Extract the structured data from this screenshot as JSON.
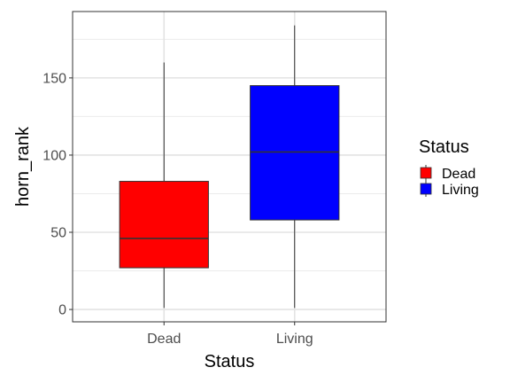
{
  "chart_data": {
    "type": "boxplot",
    "xlabel": "Status",
    "ylabel": "horn_rank",
    "categories": [
      "Dead",
      "Living"
    ],
    "boxes": [
      {
        "category": "Dead",
        "min": 1,
        "q1": 27,
        "median": 46,
        "q3": 83,
        "max": 160,
        "fill": "#ff0000"
      },
      {
        "category": "Living",
        "min": 1,
        "q1": 58,
        "median": 102,
        "q3": 145,
        "max": 184,
        "fill": "#0000ff"
      }
    ],
    "ylim": [
      -8,
      193
    ],
    "y_ticks": [
      0,
      50,
      100,
      150
    ],
    "grid": true,
    "legend": {
      "title": "Status",
      "position": "right",
      "entries": [
        {
          "label": "Dead",
          "color": "#ff0000"
        },
        {
          "label": "Living",
          "color": "#0000ff"
        }
      ]
    }
  }
}
